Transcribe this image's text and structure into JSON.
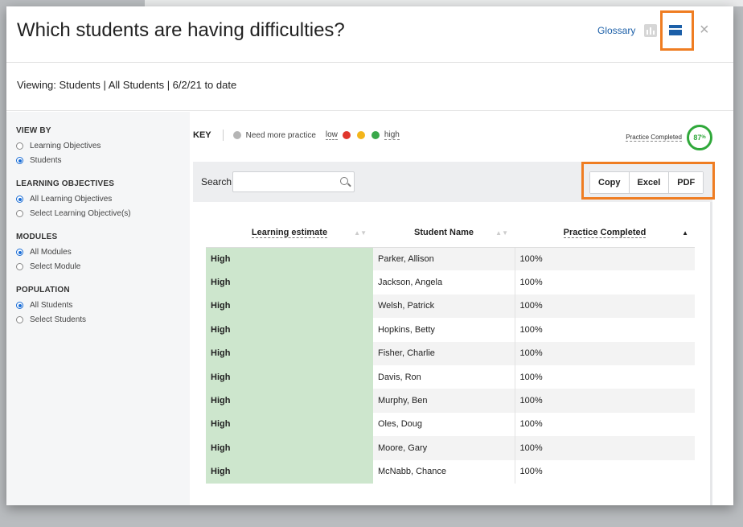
{
  "modal": {
    "title": "Which students are having difficulties?",
    "glossary_label": "Glossary",
    "close_symbol": "×",
    "viewing_text": "Viewing: Students | All Students | 6/2/21 to date"
  },
  "sidebar": {
    "sections": [
      {
        "label": "VIEW BY",
        "options": [
          {
            "label": "Learning Objectives",
            "selected": false
          },
          {
            "label": "Students",
            "selected": true
          }
        ]
      },
      {
        "label": "LEARNING OBJECTIVES",
        "options": [
          {
            "label": "All Learning Objectives",
            "selected": true
          },
          {
            "label": "Select Learning Objective(s)",
            "selected": false
          }
        ]
      },
      {
        "label": "MODULES",
        "options": [
          {
            "label": "All Modules",
            "selected": true
          },
          {
            "label": "Select Module",
            "selected": false
          }
        ]
      },
      {
        "label": "POPULATION",
        "options": [
          {
            "label": "All Students",
            "selected": true
          },
          {
            "label": "Select Students",
            "selected": false
          }
        ]
      }
    ]
  },
  "key": {
    "label": "KEY",
    "need_more_practice": "Need more practice",
    "low": "low",
    "high": "high",
    "colors": {
      "grey": "#b5b5b5",
      "red": "#e0362c",
      "yellow": "#f3b51b",
      "green": "#3aa84a"
    }
  },
  "summary": {
    "label": "Practice Completed",
    "percent": "87",
    "unit": "%"
  },
  "search": {
    "label": "Search:",
    "placeholder": ""
  },
  "export": {
    "copy": "Copy",
    "excel": "Excel",
    "pdf": "PDF"
  },
  "table": {
    "headers": {
      "estimate": "Learning estimate",
      "name": "Student Name",
      "completed": "Practice Completed"
    },
    "rows": [
      {
        "estimate": "High",
        "name": "Parker, Allison",
        "completed": "100%"
      },
      {
        "estimate": "High",
        "name": "Jackson, Angela",
        "completed": "100%"
      },
      {
        "estimate": "High",
        "name": "Welsh, Patrick",
        "completed": "100%"
      },
      {
        "estimate": "High",
        "name": "Hopkins, Betty",
        "completed": "100%"
      },
      {
        "estimate": "High",
        "name": "Fisher, Charlie",
        "completed": "100%"
      },
      {
        "estimate": "High",
        "name": "Davis, Ron",
        "completed": "100%"
      },
      {
        "estimate": "High",
        "name": "Murphy, Ben",
        "completed": "100%"
      },
      {
        "estimate": "High",
        "name": "Oles, Doug",
        "completed": "100%"
      },
      {
        "estimate": "High",
        "name": "Moore, Gary",
        "completed": "100%"
      },
      {
        "estimate": "High",
        "name": "McNabb, Chance",
        "completed": "100%"
      }
    ]
  },
  "highlight_color": "#ef7d22"
}
